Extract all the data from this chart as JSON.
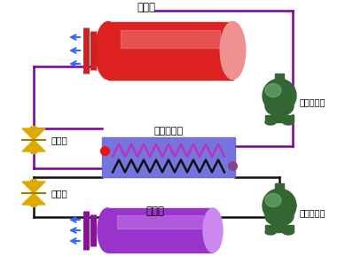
{
  "bg_color": "#ffffff",
  "condenser_label": "冷凝器",
  "evaporator_label": "蒸发器",
  "cascade_evap_label": "冷媒蒸发器",
  "high_comp_label": "高温压缩机",
  "low_comp_label": "低温压缩机",
  "valve1_label": "节流阀",
  "valve2_label": "节流阀",
  "condenser_color": "#dd2020",
  "condenser_light": "#f09090",
  "evaporator_color": "#9933cc",
  "evaporator_light": "#cc88ee",
  "cascade_color": "#6666dd",
  "coil_upper_color": "#bb33bb",
  "coil_lower_color": "#111111",
  "compressor_body": "#336633",
  "compressor_light": "#77bb77",
  "valve_color": "#ddaa00",
  "valve_dark": "#aa7700",
  "pipe_upper_color": "#770099",
  "pipe_lower_color": "#111111",
  "fin_color": "#3366ff",
  "dot_red": "#ee1111",
  "dot_purple": "#884488",
  "label_color": "#000000"
}
